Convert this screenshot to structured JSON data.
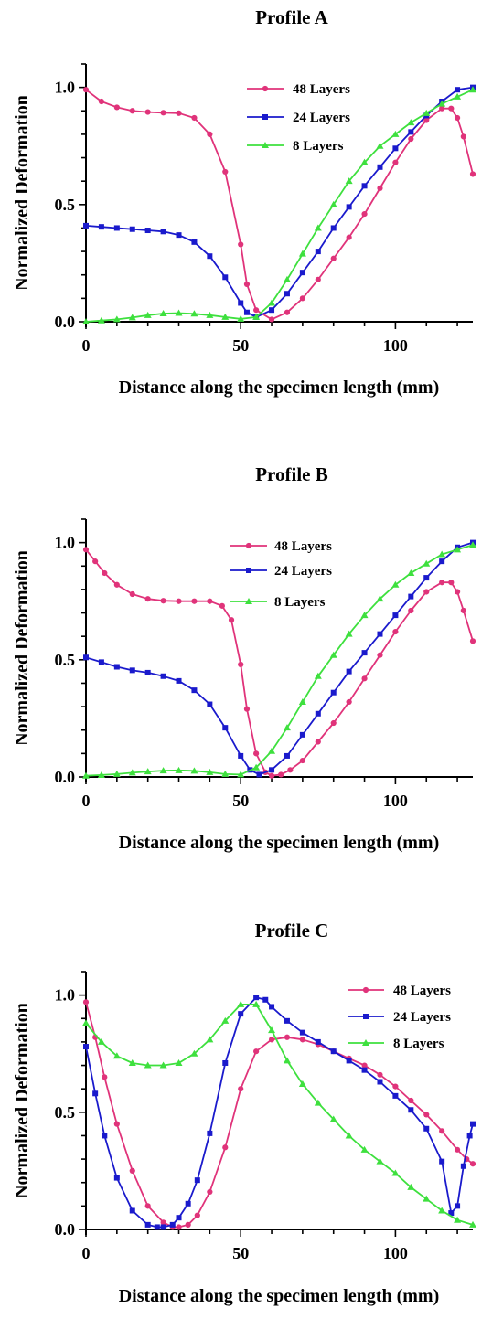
{
  "chart_data": [
    {
      "type": "line",
      "title": "Profile A",
      "xlabel": "Distance along the specimen length (mm)",
      "ylabel": "Normalized Deformation",
      "xlim": [
        0,
        125
      ],
      "ylim": [
        0,
        1.1
      ],
      "xticks": [
        0,
        50,
        100
      ],
      "yticks": [
        0.0,
        0.5,
        1.0
      ],
      "grid": false,
      "legend_placement": "top-center",
      "series": [
        {
          "name": "48 Layers",
          "color": "#e0337a",
          "marker": "circle",
          "x": [
            0,
            5,
            10,
            15,
            20,
            25,
            30,
            35,
            40,
            45,
            50,
            52,
            55,
            60,
            65,
            70,
            75,
            80,
            85,
            90,
            95,
            100,
            105,
            110,
            115,
            118,
            120,
            122,
            125
          ],
          "y": [
            0.99,
            0.94,
            0.915,
            0.9,
            0.895,
            0.892,
            0.89,
            0.87,
            0.8,
            0.64,
            0.33,
            0.16,
            0.05,
            0.01,
            0.04,
            0.1,
            0.18,
            0.27,
            0.36,
            0.46,
            0.57,
            0.68,
            0.78,
            0.86,
            0.91,
            0.91,
            0.87,
            0.79,
            0.63
          ]
        },
        {
          "name": "24 Layers",
          "color": "#1a1acc",
          "marker": "square",
          "x": [
            0,
            5,
            10,
            15,
            20,
            25,
            30,
            35,
            40,
            45,
            50,
            52,
            55,
            60,
            65,
            70,
            75,
            80,
            85,
            90,
            95,
            100,
            105,
            110,
            115,
            120,
            125
          ],
          "y": [
            0.41,
            0.405,
            0.4,
            0.395,
            0.39,
            0.385,
            0.37,
            0.34,
            0.28,
            0.19,
            0.08,
            0.04,
            0.02,
            0.05,
            0.12,
            0.21,
            0.3,
            0.4,
            0.49,
            0.58,
            0.66,
            0.74,
            0.81,
            0.88,
            0.94,
            0.99,
            1.0
          ]
        },
        {
          "name": "8 Layers",
          "color": "#3ee03e",
          "marker": "triangle",
          "x": [
            0,
            5,
            10,
            15,
            20,
            25,
            30,
            35,
            40,
            45,
            50,
            55,
            60,
            65,
            70,
            75,
            80,
            85,
            90,
            95,
            100,
            105,
            110,
            115,
            120,
            125
          ],
          "y": [
            0.0,
            0.005,
            0.01,
            0.018,
            0.028,
            0.035,
            0.037,
            0.034,
            0.028,
            0.02,
            0.012,
            0.02,
            0.08,
            0.18,
            0.29,
            0.4,
            0.5,
            0.6,
            0.68,
            0.75,
            0.8,
            0.85,
            0.89,
            0.93,
            0.96,
            0.99
          ]
        }
      ]
    },
    {
      "type": "line",
      "title": "Profile B",
      "xlabel": "Distance along the specimen length (mm)",
      "ylabel": "Normalized Deformation",
      "xlim": [
        0,
        125
      ],
      "ylim": [
        0,
        1.1
      ],
      "xticks": [
        0,
        50,
        100
      ],
      "yticks": [
        0.0,
        0.5,
        1.0
      ],
      "grid": false,
      "legend_placement": "top-center",
      "series": [
        {
          "name": "48 Layers",
          "color": "#e0337a",
          "marker": "circle",
          "x": [
            0,
            3,
            6,
            10,
            15,
            20,
            25,
            30,
            35,
            40,
            44,
            47,
            50,
            52,
            55,
            58,
            60,
            63,
            66,
            70,
            75,
            80,
            85,
            90,
            95,
            100,
            105,
            110,
            115,
            118,
            120,
            122,
            125
          ],
          "y": [
            0.97,
            0.92,
            0.87,
            0.82,
            0.78,
            0.76,
            0.752,
            0.75,
            0.75,
            0.75,
            0.73,
            0.67,
            0.48,
            0.29,
            0.1,
            0.02,
            0.005,
            0.01,
            0.03,
            0.07,
            0.15,
            0.23,
            0.32,
            0.42,
            0.52,
            0.62,
            0.71,
            0.79,
            0.83,
            0.83,
            0.79,
            0.71,
            0.58
          ]
        },
        {
          "name": "24 Layers",
          "color": "#1a1acc",
          "marker": "square",
          "x": [
            0,
            5,
            10,
            15,
            20,
            25,
            30,
            35,
            40,
            45,
            50,
            53,
            56,
            60,
            65,
            70,
            75,
            80,
            85,
            90,
            95,
            100,
            105,
            110,
            115,
            120,
            125
          ],
          "y": [
            0.51,
            0.49,
            0.47,
            0.455,
            0.445,
            0.43,
            0.41,
            0.37,
            0.31,
            0.21,
            0.09,
            0.03,
            0.01,
            0.03,
            0.09,
            0.18,
            0.27,
            0.36,
            0.45,
            0.53,
            0.61,
            0.69,
            0.77,
            0.85,
            0.92,
            0.98,
            1.0
          ]
        },
        {
          "name": "8 Layers",
          "color": "#3ee03e",
          "marker": "triangle",
          "x": [
            0,
            5,
            10,
            15,
            20,
            25,
            30,
            35,
            40,
            45,
            50,
            55,
            60,
            65,
            70,
            75,
            80,
            85,
            90,
            95,
            100,
            105,
            110,
            115,
            120,
            125
          ],
          "y": [
            0.005,
            0.008,
            0.012,
            0.018,
            0.023,
            0.027,
            0.028,
            0.026,
            0.02,
            0.012,
            0.01,
            0.04,
            0.11,
            0.21,
            0.32,
            0.43,
            0.52,
            0.61,
            0.69,
            0.76,
            0.82,
            0.87,
            0.91,
            0.95,
            0.97,
            0.99
          ]
        }
      ]
    },
    {
      "type": "line",
      "title": "Profile C",
      "xlabel": "Distance along the specimen length (mm)",
      "ylabel": "Normalized Deformation",
      "xlim": [
        0,
        125
      ],
      "ylim": [
        0,
        1.1
      ],
      "xticks": [
        0,
        50,
        100
      ],
      "yticks": [
        0.0,
        0.5,
        1.0
      ],
      "grid": false,
      "legend_placement": "top-right",
      "series": [
        {
          "name": "48 Layers",
          "color": "#e0337a",
          "marker": "circle",
          "x": [
            0,
            3,
            6,
            10,
            15,
            20,
            25,
            28,
            30,
            33,
            36,
            40,
            45,
            50,
            55,
            60,
            65,
            70,
            75,
            80,
            85,
            90,
            95,
            100,
            105,
            110,
            115,
            120,
            123,
            125
          ],
          "y": [
            0.97,
            0.82,
            0.65,
            0.45,
            0.25,
            0.1,
            0.03,
            0.01,
            0.01,
            0.02,
            0.06,
            0.16,
            0.35,
            0.6,
            0.76,
            0.81,
            0.82,
            0.81,
            0.79,
            0.76,
            0.73,
            0.7,
            0.66,
            0.61,
            0.55,
            0.49,
            0.42,
            0.34,
            0.3,
            0.28
          ]
        },
        {
          "name": "24 Layers",
          "color": "#1a1acc",
          "marker": "square",
          "x": [
            0,
            3,
            6,
            10,
            15,
            20,
            23,
            25,
            28,
            30,
            33,
            36,
            40,
            45,
            50,
            55,
            58,
            60,
            65,
            70,
            75,
            80,
            85,
            90,
            95,
            100,
            105,
            110,
            115,
            118,
            120,
            122,
            124,
            125
          ],
          "y": [
            0.78,
            0.58,
            0.4,
            0.22,
            0.08,
            0.02,
            0.01,
            0.01,
            0.02,
            0.05,
            0.11,
            0.21,
            0.41,
            0.71,
            0.92,
            0.99,
            0.98,
            0.95,
            0.89,
            0.84,
            0.8,
            0.76,
            0.72,
            0.68,
            0.63,
            0.57,
            0.51,
            0.43,
            0.29,
            0.07,
            0.1,
            0.27,
            0.4,
            0.45
          ]
        },
        {
          "name": "8 Layers",
          "color": "#3ee03e",
          "marker": "triangle",
          "x": [
            0,
            5,
            10,
            15,
            20,
            25,
            30,
            35,
            40,
            45,
            50,
            55,
            60,
            65,
            70,
            75,
            80,
            85,
            90,
            95,
            100,
            105,
            110,
            115,
            120,
            125
          ],
          "y": [
            0.88,
            0.8,
            0.74,
            0.71,
            0.7,
            0.7,
            0.71,
            0.75,
            0.81,
            0.89,
            0.96,
            0.96,
            0.85,
            0.72,
            0.62,
            0.54,
            0.47,
            0.4,
            0.34,
            0.29,
            0.24,
            0.18,
            0.13,
            0.08,
            0.04,
            0.02
          ]
        }
      ]
    }
  ]
}
